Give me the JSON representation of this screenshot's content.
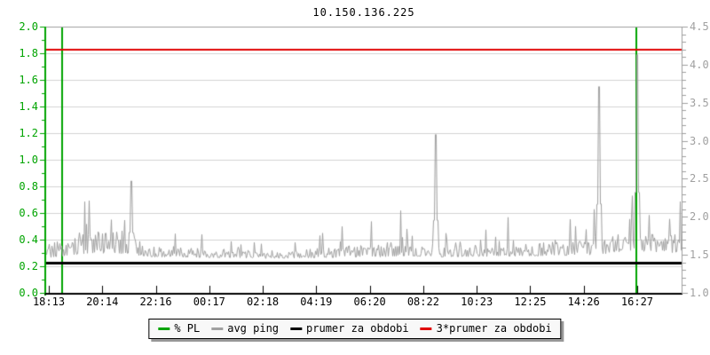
{
  "title": "10.150.136.225",
  "chart_data": {
    "type": "line",
    "title": "10.150.136.225",
    "grid": true,
    "left_axis": {
      "unit": "% PL",
      "min": 0.0,
      "max": 2.0,
      "tick_step": 0.2,
      "minor_step": 0.1,
      "ticks": [
        "0.0",
        "0.2",
        "0.4",
        "0.6",
        "0.8",
        "1.0",
        "1.2",
        "1.4",
        "1.6",
        "1.8",
        "2.0"
      ],
      "color": "#00a400"
    },
    "right_axis": {
      "unit": "avg ping (ms)",
      "min": 1.0,
      "max": 4.5,
      "tick_step": 0.5,
      "minor_step": 0.1,
      "ticks": [
        "1.0",
        "1.5",
        "2.0",
        "2.5",
        "3.0",
        "3.5",
        "4.0",
        "4.5"
      ],
      "color": "#a0a0a0"
    },
    "x_ticks": [
      "18:13",
      "20:14",
      "22:16",
      "00:17",
      "02:18",
      "04:19",
      "06:20",
      "08:22",
      "10:23",
      "12:25",
      "14:26",
      "16:27"
    ],
    "series": [
      {
        "name": "% PL",
        "type": "vrule",
        "color": "#00a400",
        "events_frac": [
          0.025,
          0.929
        ]
      },
      {
        "name": "avg ping",
        "type": "noisy-line",
        "color": "#a0a0a0",
        "axis": "right",
        "baseline_ms": 1.5,
        "envelope": [
          [
            0.0,
            1.46,
            0.18,
            0.4,
            1.95
          ],
          [
            0.048,
            1.5,
            0.24,
            0.55,
            2.25
          ],
          [
            0.065,
            1.52,
            0.28,
            0.65,
            2.4
          ],
          [
            0.11,
            1.52,
            0.28,
            0.6,
            2.4
          ],
          [
            0.135,
            1.5,
            0.22,
            0.45,
            2.15
          ],
          [
            0.17,
            1.47,
            0.15,
            0.3,
            1.85
          ],
          [
            0.3,
            1.46,
            0.12,
            0.25,
            1.8
          ],
          [
            0.355,
            1.45,
            0.07,
            0.12,
            1.62
          ],
          [
            0.4,
            1.46,
            0.12,
            0.28,
            1.8
          ],
          [
            0.52,
            1.47,
            0.15,
            0.35,
            1.95
          ],
          [
            0.57,
            1.49,
            0.18,
            0.45,
            2.2
          ],
          [
            0.6,
            1.47,
            0.14,
            0.3,
            1.85
          ],
          [
            0.72,
            1.48,
            0.16,
            0.4,
            2.0
          ],
          [
            0.8,
            1.49,
            0.18,
            0.45,
            2.1
          ],
          [
            0.865,
            1.5,
            0.18,
            0.45,
            2.1
          ],
          [
            0.91,
            1.55,
            0.26,
            0.62,
            2.3
          ],
          [
            0.945,
            1.54,
            0.24,
            0.58,
            2.25
          ],
          [
            1.0,
            1.52,
            0.22,
            0.55,
            2.2
          ]
        ],
        "spikes": [
          {
            "frac": 0.134,
            "ms": 2.47
          },
          {
            "frac": 0.613,
            "ms": 3.08
          },
          {
            "frac": 0.869,
            "ms": 3.71
          },
          {
            "frac": 0.93,
            "ms": 4.13
          }
        ]
      },
      {
        "name": "prumer za obdobi",
        "type": "hrule",
        "color": "#000000",
        "value_ms": 1.4
      },
      {
        "name": "3*prumer za obdobi",
        "type": "hrule",
        "color": "#e00000",
        "value_ms": 4.2
      }
    ],
    "colors": {
      "grid": "#d4d4d4",
      "border_gray": "#a0a0a0",
      "axis_green": "#00a400",
      "data_gray": "#a0a0a0",
      "x_label": "#000000"
    }
  },
  "legend": {
    "items": [
      {
        "label": "% PL",
        "color": "#00a400"
      },
      {
        "label": "avg ping",
        "color": "#a0a0a0"
      },
      {
        "label": "prumer za obdobi",
        "color": "#000000"
      },
      {
        "label": "3*prumer za obdobi",
        "color": "#e00000"
      }
    ]
  }
}
